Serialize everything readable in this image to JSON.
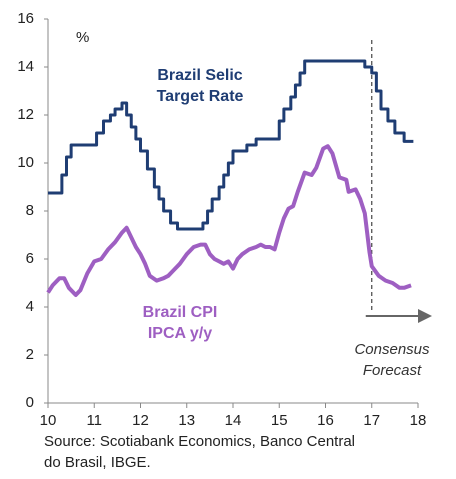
{
  "chart_data": {
    "type": "line",
    "unit_label": "%",
    "series": [
      {
        "name": "Brazil Selic Target Rate",
        "label_lines": [
          "Brazil Selic",
          "Target Rate"
        ],
        "color": "#1f3d73",
        "step": true,
        "x": [
          10.0,
          10.3,
          10.4,
          10.5,
          11.05,
          11.2,
          11.35,
          11.45,
          11.6,
          11.7,
          11.8,
          11.9,
          12.0,
          12.15,
          12.3,
          12.4,
          12.5,
          12.65,
          12.8,
          13.35,
          13.45,
          13.55,
          13.7,
          13.8,
          13.9,
          14.0,
          14.3,
          14.5,
          15.0,
          15.1,
          15.25,
          15.35,
          15.45,
          15.55,
          16.85,
          17.0,
          17.1,
          17.2,
          17.35,
          17.5,
          17.7,
          17.9
        ],
        "values": [
          8.75,
          9.5,
          10.25,
          10.75,
          11.25,
          11.75,
          12.0,
          12.25,
          12.5,
          12.0,
          11.5,
          11.0,
          10.5,
          9.75,
          9.0,
          8.5,
          8.0,
          7.5,
          7.25,
          7.5,
          8.0,
          8.5,
          9.0,
          9.5,
          10.0,
          10.5,
          10.75,
          11.0,
          11.75,
          12.25,
          12.75,
          13.25,
          13.75,
          14.25,
          14.0,
          13.75,
          13.0,
          12.25,
          11.75,
          11.25,
          10.9,
          10.9
        ]
      },
      {
        "name": "Brazil CPI IPCA y/y",
        "label_lines": [
          "Brazil CPI",
          "IPCA y/y"
        ],
        "color": "#9e5fc2",
        "step": false,
        "x": [
          10.0,
          10.1,
          10.25,
          10.35,
          10.45,
          10.6,
          10.7,
          10.85,
          11.0,
          11.15,
          11.3,
          11.45,
          11.6,
          11.7,
          11.8,
          11.9,
          12.0,
          12.1,
          12.2,
          12.35,
          12.5,
          12.6,
          12.7,
          12.85,
          13.0,
          13.15,
          13.3,
          13.4,
          13.5,
          13.6,
          13.7,
          13.8,
          13.9,
          14.0,
          14.1,
          14.2,
          14.35,
          14.5,
          14.6,
          14.7,
          14.8,
          14.9,
          15.0,
          15.1,
          15.2,
          15.3,
          15.4,
          15.55,
          15.7,
          15.8,
          15.95,
          16.05,
          16.15,
          16.3,
          16.45,
          16.5,
          16.65,
          16.75,
          16.85,
          16.95,
          17.0,
          17.15,
          17.3,
          17.45,
          17.6,
          17.7,
          17.85
        ],
        "values": [
          4.6,
          4.9,
          5.2,
          5.2,
          4.8,
          4.5,
          4.7,
          5.4,
          5.9,
          6.0,
          6.4,
          6.7,
          7.1,
          7.3,
          6.9,
          6.5,
          6.2,
          5.8,
          5.3,
          5.1,
          5.2,
          5.3,
          5.5,
          5.8,
          6.2,
          6.5,
          6.6,
          6.6,
          6.2,
          6.0,
          5.9,
          5.8,
          5.9,
          5.6,
          6.0,
          6.2,
          6.4,
          6.5,
          6.6,
          6.5,
          6.5,
          6.4,
          7.1,
          7.7,
          8.1,
          8.2,
          8.8,
          9.6,
          9.5,
          9.8,
          10.6,
          10.7,
          10.4,
          9.4,
          9.3,
          8.8,
          8.9,
          8.5,
          7.9,
          6.3,
          5.7,
          5.3,
          5.1,
          5.0,
          4.8,
          4.8,
          4.9
        ]
      }
    ],
    "forecast_start": 17,
    "forecast_label_lines": [
      "Consensus",
      "Forecast"
    ],
    "xlim": [
      10,
      18
    ],
    "xticks": [
      10,
      11,
      12,
      13,
      14,
      15,
      16,
      17,
      18
    ],
    "ylim": [
      0,
      16
    ],
    "yticks": [
      0,
      2,
      4,
      6,
      8,
      10,
      12,
      14,
      16
    ],
    "source_lines": [
      "Source: Scotiabank Economics, Banco Central",
      "do Brasil, IBGE."
    ]
  }
}
